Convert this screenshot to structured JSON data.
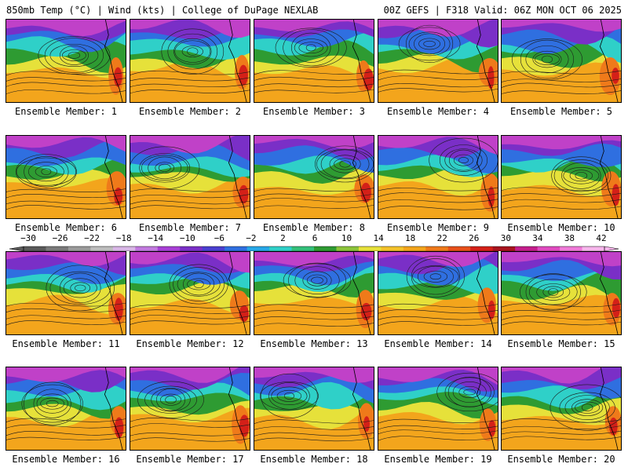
{
  "header": {
    "left": "850mb Temp (°C) | Wind (kts) | College of DuPage NEXLAB",
    "right": "00Z GEFS | F318 Valid: 06Z MON OCT 06 2025"
  },
  "members": [
    "Ensemble Member: 1",
    "Ensemble Member: 2",
    "Ensemble Member: 3",
    "Ensemble Member: 4",
    "Ensemble Member: 5",
    "Ensemble Member: 6",
    "Ensemble Member: 7",
    "Ensemble Member: 8",
    "Ensemble Member: 9",
    "Ensemble Member: 10",
    "Ensemble Member: 11",
    "Ensemble Member: 12",
    "Ensemble Member: 13",
    "Ensemble Member: 14",
    "Ensemble Member: 15",
    "Ensemble Member: 16",
    "Ensemble Member: 17",
    "Ensemble Member: 18",
    "Ensemble Member: 19",
    "Ensemble Member: 20"
  ],
  "colorbar": {
    "ticks": [
      "−30",
      "−26",
      "−22",
      "−18",
      "−14",
      "−10",
      "−6",
      "−2",
      "2",
      "6",
      "10",
      "14",
      "18",
      "22",
      "26",
      "30",
      "34",
      "38",
      "42"
    ],
    "colors": [
      "#5a5a5a",
      "#7a7a7a",
      "#9b9b9b",
      "#bdbdbd",
      "#d8b6e6",
      "#c27adf",
      "#a83fd6",
      "#7a2fc7",
      "#4a3fd0",
      "#2f6fe0",
      "#27a8e8",
      "#2fd0c8",
      "#33c07a",
      "#2e9b32",
      "#8cc43a",
      "#e6e13a",
      "#f4c22a",
      "#f3a51c",
      "#ef7a1a",
      "#e8501a",
      "#d42018",
      "#a8141e",
      "#c41e8c",
      "#e04ac0",
      "#f07ad8",
      "#f7b6ec"
    ]
  },
  "palette": {
    "warm": "#f3a51c",
    "orange": "#ef7a1a",
    "red": "#d42018",
    "yellow": "#e6e13a",
    "green": "#2e9b32",
    "teal": "#2fd0c8",
    "blue": "#2f6fe0",
    "purple": "#7a2fc7",
    "magenta": "#c041c8"
  }
}
